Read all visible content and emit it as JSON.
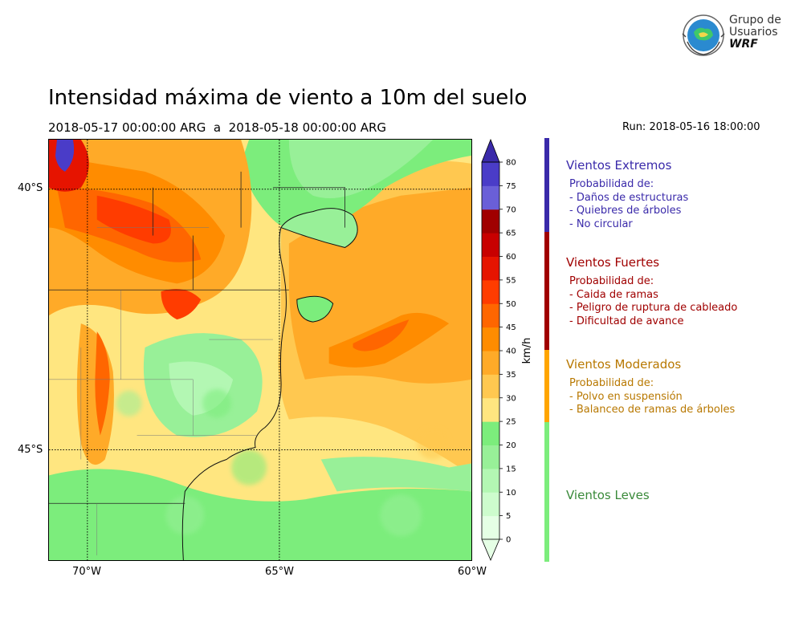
{
  "logo": {
    "line1": "Grupo de",
    "line2": "Usuarios",
    "line3": "WRF"
  },
  "title": "Intensidad máxima de viento a 10m del suelo",
  "period": "2018-05-17 00:00:00 ARG  a  2018-05-18 00:00:00 ARG",
  "run": "Run: 2018-05-16 18:00:00",
  "axes": {
    "lat_ticks": [
      "40°S",
      "45°S"
    ],
    "lon_ticks": [
      "70°W",
      "65°W",
      "60°W"
    ]
  },
  "colorbar": {
    "unit": "km/h",
    "ticks": [
      "0",
      "5",
      "10",
      "15",
      "20",
      "25",
      "30",
      "35",
      "40",
      "45",
      "50",
      "55",
      "60",
      "65",
      "70",
      "75",
      "80"
    ],
    "colors": [
      "#e5ffe5",
      "#cdfccd",
      "#b3f7b3",
      "#98f098",
      "#7ced7c",
      "#ffe680",
      "#ffc850",
      "#ffaa28",
      "#ff8c00",
      "#ff6600",
      "#ff3c00",
      "#e61400",
      "#c80000",
      "#a00000",
      "#6a5fd8",
      "#4a3cc8",
      "#3a2aaa"
    ]
  },
  "categories": [
    {
      "title": "Vientos Extremos",
      "color": "#3a2aaa",
      "heading": "Probabilidad de:",
      "items": [
        "- Daños de estructuras",
        "- Quiebres de árboles",
        "- No circular"
      ]
    },
    {
      "title": "Vientos Fuertes",
      "color": "#a00000",
      "heading": "Probabilidad de:",
      "items": [
        "- Caida de ramas",
        "- Peligro de ruptura de cableado",
        "- Dificultad de avance"
      ]
    },
    {
      "title": "Vientos Moderados",
      "color": "#b87800",
      "heading": "Probabilidad de:",
      "items": [
        "- Polvo en suspensión",
        "- Balanceo de ramas de árboles"
      ]
    },
    {
      "title": "Vientos Leves",
      "color": "#3a8a3a",
      "heading": "",
      "items": []
    }
  ],
  "legend_strip_colors": [
    "#3a2aaa",
    "#a00000",
    "#ffa500",
    "#7ced7c"
  ]
}
